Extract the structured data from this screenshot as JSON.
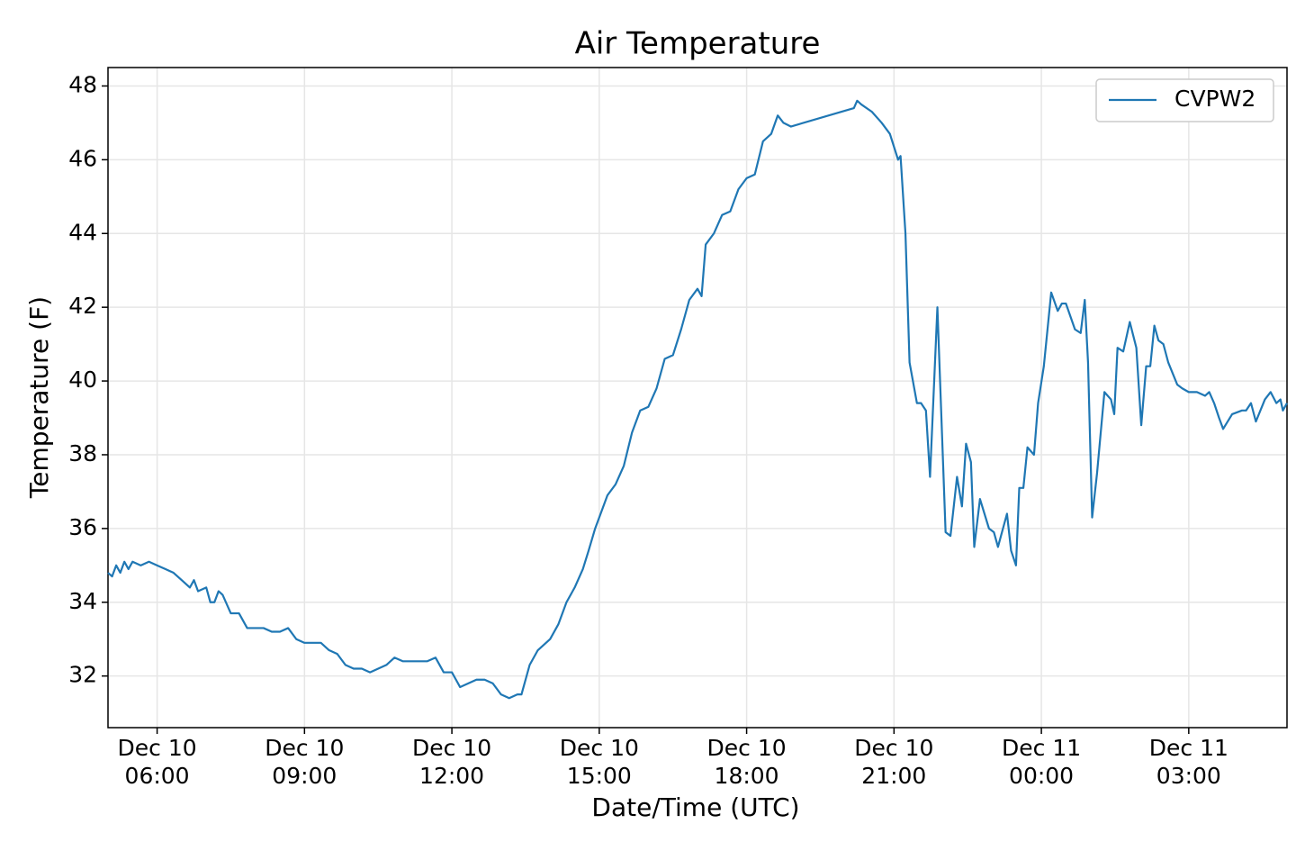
{
  "chart_data": {
    "type": "line",
    "title": "Air Temperature",
    "x_label": "Date/Time (UTC)",
    "y_label": "Temperature (F)",
    "grid": true,
    "legend": "upper right",
    "xlim": [
      "Dec 10 05:00",
      "Dec 11 05:00"
    ],
    "ylim": [
      30.6,
      48.5
    ],
    "yticks": [
      32,
      34,
      36,
      38,
      40,
      42,
      44,
      46,
      48
    ],
    "xticks": [
      {
        "value": "Dec 10 06:00",
        "label": [
          "Dec 10",
          "06:00"
        ]
      },
      {
        "value": "Dec 10 09:00",
        "label": [
          "Dec 10",
          "09:00"
        ]
      },
      {
        "value": "Dec 10 12:00",
        "label": [
          "Dec 10",
          "12:00"
        ]
      },
      {
        "value": "Dec 10 15:00",
        "label": [
          "Dec 10",
          "15:00"
        ]
      },
      {
        "value": "Dec 10 18:00",
        "label": [
          "Dec 10",
          "18:00"
        ]
      },
      {
        "value": "Dec 10 21:00",
        "label": [
          "Dec 10",
          "21:00"
        ]
      },
      {
        "value": "Dec 11 00:00",
        "label": [
          "Dec 11",
          "00:00"
        ]
      },
      {
        "value": "Dec 11 03:00",
        "label": [
          "Dec 11",
          "03:00"
        ]
      }
    ],
    "x": [
      "Dec 10 05:00",
      "Dec 10 05:05",
      "Dec 10 05:10",
      "Dec 10 05:15",
      "Dec 10 05:20",
      "Dec 10 05:25",
      "Dec 10 05:30",
      "Dec 10 05:40",
      "Dec 10 05:50",
      "Dec 10 06:00",
      "Dec 10 06:10",
      "Dec 10 06:20",
      "Dec 10 06:30",
      "Dec 10 06:40",
      "Dec 10 06:45",
      "Dec 10 06:50",
      "Dec 10 07:00",
      "Dec 10 07:05",
      "Dec 10 07:10",
      "Dec 10 07:15",
      "Dec 10 07:20",
      "Dec 10 07:30",
      "Dec 10 07:40",
      "Dec 10 07:50",
      "Dec 10 08:00",
      "Dec 10 08:10",
      "Dec 10 08:20",
      "Dec 10 08:30",
      "Dec 10 08:40",
      "Dec 10 08:50",
      "Dec 10 09:00",
      "Dec 10 09:10",
      "Dec 10 09:20",
      "Dec 10 09:30",
      "Dec 10 09:40",
      "Dec 10 09:50",
      "Dec 10 10:00",
      "Dec 10 10:10",
      "Dec 10 10:20",
      "Dec 10 10:30",
      "Dec 10 10:40",
      "Dec 10 10:50",
      "Dec 10 11:00",
      "Dec 10 11:10",
      "Dec 10 11:20",
      "Dec 10 11:30",
      "Dec 10 11:40",
      "Dec 10 11:50",
      "Dec 10 12:00",
      "Dec 10 12:05",
      "Dec 10 12:10",
      "Dec 10 12:20",
      "Dec 10 12:30",
      "Dec 10 12:40",
      "Dec 10 12:50",
      "Dec 10 13:00",
      "Dec 10 13:10",
      "Dec 10 13:20",
      "Dec 10 13:25",
      "Dec 10 13:35",
      "Dec 10 13:45",
      "Dec 10 13:55",
      "Dec 10 14:00",
      "Dec 10 14:10",
      "Dec 10 14:20",
      "Dec 10 14:30",
      "Dec 10 14:40",
      "Dec 10 14:47",
      "Dec 10 14:55",
      "Dec 10 15:00",
      "Dec 10 15:10",
      "Dec 10 15:20",
      "Dec 10 15:30",
      "Dec 10 15:40",
      "Dec 10 15:50",
      "Dec 10 16:00",
      "Dec 10 16:10",
      "Dec 10 16:20",
      "Dec 10 16:30",
      "Dec 10 16:40",
      "Dec 10 16:50",
      "Dec 10 17:00",
      "Dec 10 17:05",
      "Dec 10 17:10",
      "Dec 10 17:20",
      "Dec 10 17:30",
      "Dec 10 17:40",
      "Dec 10 17:50",
      "Dec 10 18:00",
      "Dec 10 18:10",
      "Dec 10 18:20",
      "Dec 10 18:30",
      "Dec 10 18:38",
      "Dec 10 18:45",
      "Dec 10 18:54",
      "Dec 10 20:11",
      "Dec 10 20:15",
      "Dec 10 20:20",
      "Dec 10 20:33",
      "Dec 10 20:45",
      "Dec 10 20:55",
      "Dec 10 21:05",
      "Dec 10 21:08",
      "Dec 10 21:14",
      "Dec 10 21:19",
      "Dec 10 21:28",
      "Dec 10 21:33",
      "Dec 10 21:39",
      "Dec 10 21:44",
      "Dec 10 21:53",
      "Dec 10 22:03",
      "Dec 10 22:09",
      "Dec 10 22:17",
      "Dec 10 22:23",
      "Dec 10 22:28",
      "Dec 10 22:34",
      "Dec 10 22:38",
      "Dec 10 22:45",
      "Dec 10 22:56",
      "Dec 10 23:02",
      "Dec 10 23:07",
      "Dec 10 23:18",
      "Dec 10 23:23",
      "Dec 10 23:29",
      "Dec 10 23:33",
      "Dec 10 23:38",
      "Dec 10 23:43",
      "Dec 10 23:51",
      "Dec 10 23:56",
      "Dec 11 00:03",
      "Dec 11 00:12",
      "Dec 11 00:20",
      "Dec 11 00:25",
      "Dec 11 00:30",
      "Dec 11 00:41",
      "Dec 11 00:48",
      "Dec 11 00:53",
      "Dec 11 00:57",
      "Dec 11 01:02",
      "Dec 11 01:08",
      "Dec 11 01:17",
      "Dec 11 01:25",
      "Dec 11 01:29",
      "Dec 11 01:33",
      "Dec 11 01:40",
      "Dec 11 01:48",
      "Dec 11 01:56",
      "Dec 11 02:02",
      "Dec 11 02:08",
      "Dec 11 02:13",
      "Dec 11 02:18",
      "Dec 11 02:23",
      "Dec 11 02:29",
      "Dec 11 02:35",
      "Dec 11 02:46",
      "Dec 11 02:52",
      "Dec 11 03:00",
      "Dec 11 03:10",
      "Dec 11 03:20",
      "Dec 11 03:25",
      "Dec 11 03:31",
      "Dec 11 03:37",
      "Dec 11 03:42",
      "Dec 11 03:53",
      "Dec 11 04:05",
      "Dec 11 04:10",
      "Dec 11 04:16",
      "Dec 11 04:22",
      "Dec 11 04:33",
      "Dec 11 04:40",
      "Dec 11 04:47",
      "Dec 11 04:52",
      "Dec 11 04:55",
      "Dec 11 05:00"
    ],
    "series": [
      {
        "name": "CVPW2",
        "color": "#1f77b4",
        "values": [
          34.8,
          34.7,
          35.0,
          34.8,
          35.1,
          34.9,
          35.1,
          35.0,
          35.1,
          35.0,
          34.9,
          34.8,
          34.6,
          34.4,
          34.6,
          34.3,
          34.4,
          34.0,
          34.0,
          34.3,
          34.2,
          33.7,
          33.7,
          33.3,
          33.3,
          33.3,
          33.2,
          33.2,
          33.3,
          33.0,
          32.9,
          32.9,
          32.9,
          32.7,
          32.6,
          32.3,
          32.2,
          32.2,
          32.1,
          32.2,
          32.3,
          32.5,
          32.4,
          32.4,
          32.4,
          32.4,
          32.5,
          32.1,
          32.1,
          31.9,
          31.7,
          31.8,
          31.9,
          31.9,
          31.8,
          31.5,
          31.4,
          31.5,
          31.5,
          32.3,
          32.7,
          32.9,
          33.0,
          33.4,
          34.0,
          34.4,
          34.9,
          35.4,
          36.0,
          36.3,
          36.9,
          37.2,
          37.7,
          38.6,
          39.2,
          39.3,
          39.8,
          40.6,
          40.7,
          41.4,
          42.2,
          42.5,
          42.3,
          43.7,
          44.0,
          44.5,
          44.6,
          45.2,
          45.5,
          45.6,
          46.5,
          46.7,
          47.2,
          47.0,
          46.9,
          47.4,
          47.6,
          47.5,
          47.3,
          47.0,
          46.7,
          46.0,
          46.1,
          44.0,
          40.5,
          39.4,
          39.4,
          39.2,
          37.4,
          42.0,
          35.9,
          35.8,
          37.4,
          36.6,
          38.3,
          37.8,
          35.5,
          36.8,
          36.0,
          35.9,
          35.5,
          36.4,
          35.4,
          35.0,
          37.1,
          37.1,
          38.2,
          38.0,
          39.4,
          40.4,
          42.4,
          41.9,
          42.1,
          42.1,
          41.4,
          41.3,
          42.2,
          40.5,
          36.3,
          37.5,
          39.7,
          39.5,
          39.1,
          40.9,
          40.8,
          41.6,
          40.9,
          38.8,
          40.4,
          40.4,
          41.5,
          41.1,
          41.0,
          40.5,
          39.9,
          39.8,
          39.7,
          39.7,
          39.6,
          39.7,
          39.4,
          39.0,
          38.7,
          39.1,
          39.2,
          39.2,
          39.4,
          38.9,
          39.5,
          39.7,
          39.4,
          39.5,
          39.2,
          39.4
        ]
      }
    ]
  }
}
